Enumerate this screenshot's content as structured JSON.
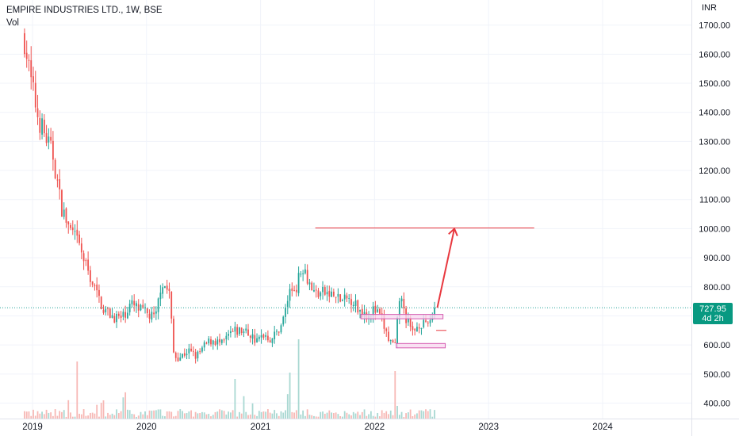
{
  "header": {
    "symbol_line": "EMPIRE INDUSTRIES LTD., 1W, BSE",
    "volume_label": "Vol",
    "currency": "INR"
  },
  "last_price": {
    "value": "727.95",
    "countdown": "4d 2h"
  },
  "colors": {
    "up": "#26a69a",
    "down": "#ef5350",
    "volume_up": "#a9d8d2",
    "volume_down": "#f7b8b5",
    "drawing": "#e8373e",
    "zone_fill": "#f9d9f0",
    "zone_border": "#d45bb0",
    "badge": "#089981"
  },
  "chart_data": {
    "type": "candlestick",
    "interval": "1W",
    "y_axis": {
      "position": "right",
      "scale": "linear",
      "range": [
        365,
        1760
      ],
      "ticks": [
        "1700.00",
        "1600.00",
        "1500.00",
        "1400.00",
        "1300.00",
        "1200.00",
        "1100.00",
        "1000.00",
        "900.00",
        "800.00",
        "700.00",
        "600.00",
        "500.00",
        "400.00"
      ]
    },
    "x_axis": {
      "range": [
        2018.92,
        2024.95
      ],
      "ticks": [
        "2019",
        "2020",
        "2021",
        "2022",
        "2023",
        "2024"
      ]
    },
    "price_path": [
      [
        2018.93,
        1650
      ],
      [
        2018.98,
        1520
      ],
      [
        2019.05,
        1380
      ],
      [
        2019.12,
        1310
      ],
      [
        2019.18,
        1250
      ],
      [
        2019.25,
        1080
      ],
      [
        2019.32,
        1000
      ],
      [
        2019.4,
        950
      ],
      [
        2019.46,
        880
      ],
      [
        2019.52,
        820
      ],
      [
        2019.58,
        760
      ],
      [
        2019.63,
        720
      ],
      [
        2019.7,
        700
      ],
      [
        2019.78,
        690
      ],
      [
        2019.86,
        740
      ],
      [
        2019.94,
        720
      ],
      [
        2020.03,
        700
      ],
      [
        2020.08,
        690
      ],
      [
        2020.13,
        820
      ],
      [
        2020.2,
        780
      ],
      [
        2020.24,
        560
      ],
      [
        2020.3,
        560
      ],
      [
        2020.36,
        580
      ],
      [
        2020.44,
        560
      ],
      [
        2020.52,
        600
      ],
      [
        2020.58,
        620
      ],
      [
        2020.66,
        600
      ],
      [
        2020.74,
        640
      ],
      [
        2020.82,
        650
      ],
      [
        2020.9,
        640
      ],
      [
        2020.97,
        610
      ],
      [
        2021.03,
        640
      ],
      [
        2021.09,
        620
      ],
      [
        2021.14,
        640
      ],
      [
        2021.2,
        690
      ],
      [
        2021.25,
        780
      ],
      [
        2021.31,
        800
      ],
      [
        2021.38,
        880
      ],
      [
        2021.42,
        820
      ],
      [
        2021.47,
        780
      ],
      [
        2021.55,
        780
      ],
      [
        2021.63,
        770
      ],
      [
        2021.72,
        750
      ],
      [
        2021.8,
        760
      ],
      [
        2021.86,
        720
      ],
      [
        2021.93,
        710
      ],
      [
        2022.0,
        720
      ],
      [
        2022.06,
        690
      ],
      [
        2022.12,
        620
      ],
      [
        2022.18,
        590
      ],
      [
        2022.22,
        770
      ],
      [
        2022.27,
        700
      ],
      [
        2022.33,
        640
      ],
      [
        2022.4,
        680
      ],
      [
        2022.45,
        660
      ],
      [
        2022.5,
        700
      ],
      [
        2022.54,
        728
      ]
    ],
    "last_close": 727.95,
    "resistance_line": {
      "price": 1002,
      "from": 2021.48,
      "to": 2023.4
    },
    "projection_arrow": {
      "from": [
        2022.55,
        728
      ],
      "to": [
        2022.7,
        1000
      ]
    },
    "zones": [
      {
        "from": 2021.88,
        "to": 2022.6,
        "low": 690,
        "high": 705
      },
      {
        "from": 2022.19,
        "to": 2022.62,
        "low": 590,
        "high": 605
      }
    ],
    "small_line": {
      "price": 650,
      "from": 2022.54,
      "to": 2022.63
    }
  }
}
